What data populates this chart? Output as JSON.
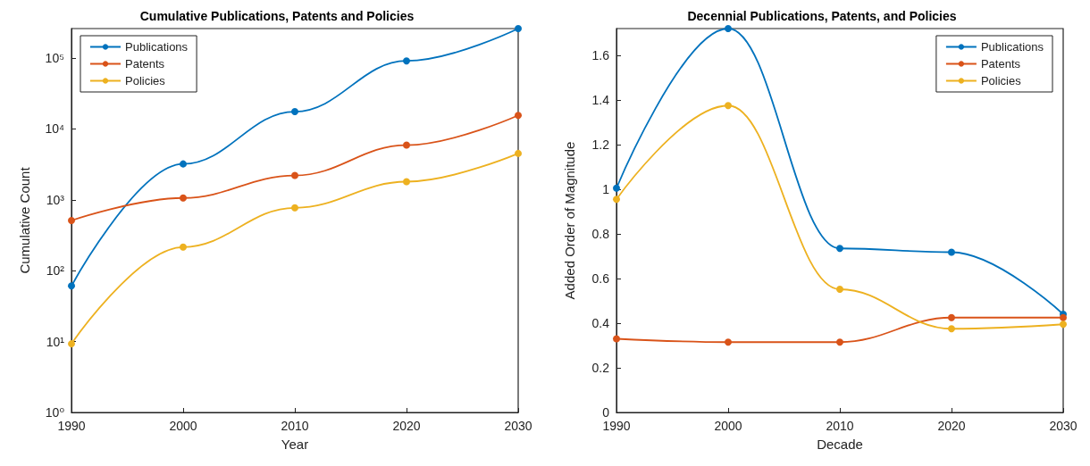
{
  "chart_data": [
    {
      "type": "line",
      "title": "Cumulative Publications, Patents and Policies",
      "xlabel": "Year",
      "ylabel": "Cumulative Count",
      "x": [
        1990,
        2000,
        2010,
        2020,
        2030
      ],
      "xlim": [
        1990,
        2030
      ],
      "xticks": [
        1990,
        2000,
        2010,
        2020,
        2030
      ],
      "log": "y",
      "ylim": [
        1,
        260000
      ],
      "yticks": [
        {
          "value": 1,
          "label": "10⁰"
        },
        {
          "value": 10,
          "label": "10¹"
        },
        {
          "value": 100,
          "label": "10²"
        },
        {
          "value": 1000,
          "label": "10³"
        },
        {
          "value": 10000,
          "label": "10⁴"
        },
        {
          "value": 100000,
          "label": "10⁵"
        }
      ],
      "grid": false,
      "legend": "top left",
      "marker": "circle",
      "line_style": "solid",
      "series": [
        {
          "name": "Publications",
          "color": "#0072bd",
          "values": [
            61,
            3200,
            17500,
            91000,
            260000
          ]
        },
        {
          "name": "Patents",
          "color": "#d95319",
          "values": [
            510,
            1060,
            2200,
            5900,
            15500
          ]
        },
        {
          "name": "Policies",
          "color": "#edb120",
          "values": [
            9.3,
            215,
            770,
            1800,
            4500
          ]
        }
      ]
    },
    {
      "type": "line",
      "title": "Decennial Publications, Patents, and Policies",
      "xlabel": "Decade",
      "ylabel": "Added Order of Magnitude",
      "x": [
        1990,
        2000,
        2010,
        2020,
        2030
      ],
      "xlim": [
        1990,
        2030
      ],
      "xticks": [
        1990,
        2000,
        2010,
        2020,
        2030
      ],
      "ylim": [
        0,
        1.72
      ],
      "yticks": [
        0,
        0.2,
        0.4,
        0.6,
        0.8,
        1,
        1.2,
        1.4,
        1.6
      ],
      "grid": false,
      "legend": "top right",
      "marker": "circle",
      "line_style": "solid",
      "series": [
        {
          "name": "Publications",
          "color": "#0072bd",
          "values": [
            1.005,
            1.72,
            0.735,
            0.718,
            0.44
          ]
        },
        {
          "name": "Patents",
          "color": "#d95319",
          "values": [
            0.33,
            0.315,
            0.315,
            0.425,
            0.425
          ]
        },
        {
          "name": "Policies",
          "color": "#edb120",
          "values": [
            0.955,
            1.375,
            0.552,
            0.375,
            0.395
          ]
        }
      ]
    }
  ]
}
